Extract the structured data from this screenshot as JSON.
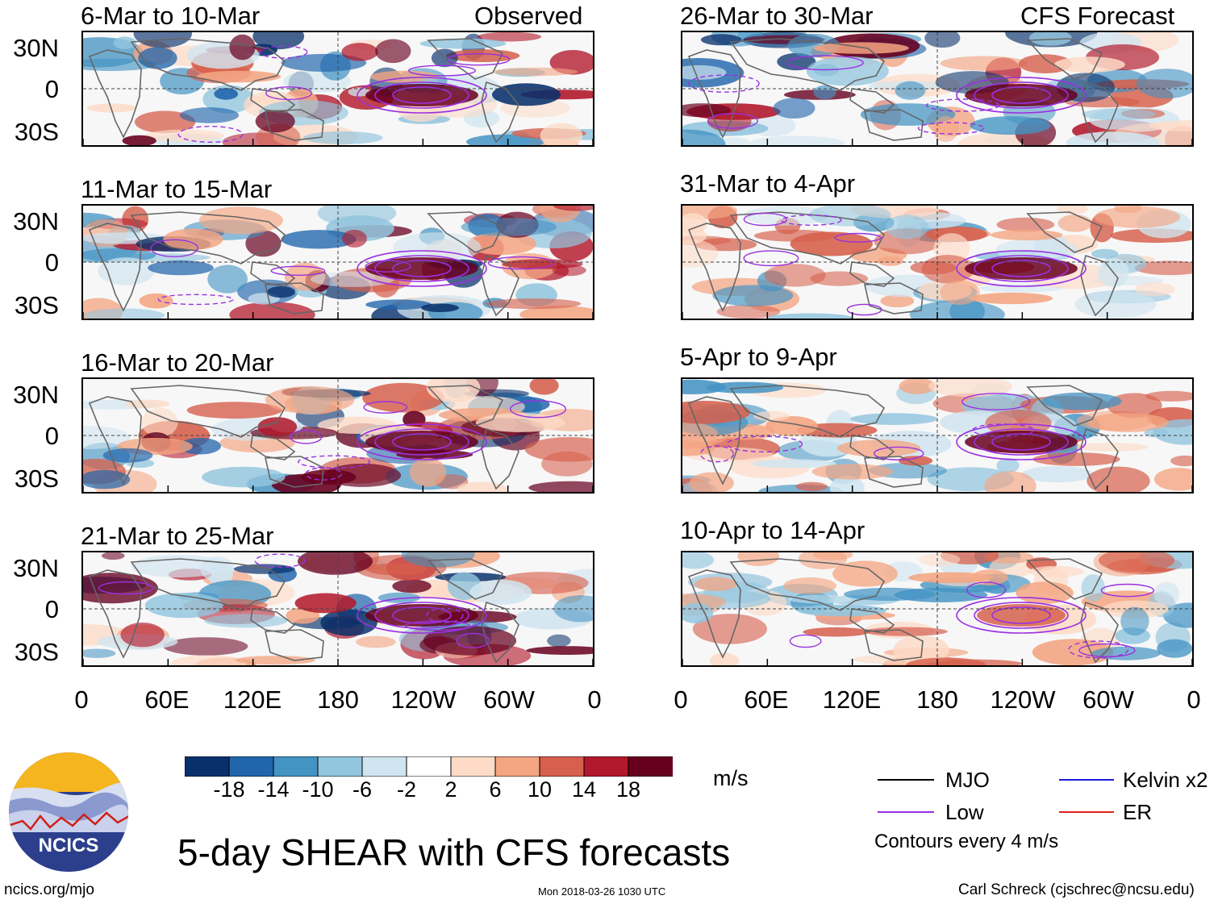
{
  "headers": {
    "left_tag": "Observed",
    "right_tag": "CFS Forecast"
  },
  "panels_left": [
    {
      "title": "6-Mar to 10-Mar"
    },
    {
      "title": "11-Mar to 15-Mar"
    },
    {
      "title": "16-Mar to 20-Mar"
    },
    {
      "title": "21-Mar to 25-Mar"
    }
  ],
  "panels_right": [
    {
      "title": "26-Mar to 30-Mar"
    },
    {
      "title": "31-Mar to 4-Apr"
    },
    {
      "title": "5-Apr to 9-Apr"
    },
    {
      "title": "10-Apr to 14-Apr"
    }
  ],
  "lat_labels": [
    "30N",
    "0",
    "30S"
  ],
  "lon_labels": [
    "0",
    "60E",
    "120E",
    "180",
    "120W",
    "60W",
    "0"
  ],
  "colorbar": {
    "colors": [
      "#08306b",
      "#2166ac",
      "#4393c3",
      "#92c5de",
      "#d1e5f0",
      "#ffffff",
      "#fddbc7",
      "#f4a582",
      "#d6604d",
      "#b2182b",
      "#67001f"
    ],
    "ticks": [
      "-18",
      "-14",
      "-10",
      "-6",
      "-2",
      "2",
      "6",
      "10",
      "14",
      "18"
    ],
    "units": "m/s"
  },
  "legend": {
    "items": [
      {
        "label": "MJO",
        "color": "#000000"
      },
      {
        "label": "Kelvin x2",
        "color": "#1a1adb"
      },
      {
        "label": "Low",
        "color": "#9b30e0"
      },
      {
        "label": "ER",
        "color": "#e0201a"
      }
    ],
    "note": "Contours every 4 m/s"
  },
  "logo": {
    "text": "NCICS"
  },
  "title": "5-day SHEAR with CFS forecasts",
  "footer": {
    "url": "ncics.org/mjo",
    "timestamp": "Mon 2018-03-26 1030 UTC",
    "credit": "Carl Schreck (cjschrec@ncsu.edu)"
  }
}
